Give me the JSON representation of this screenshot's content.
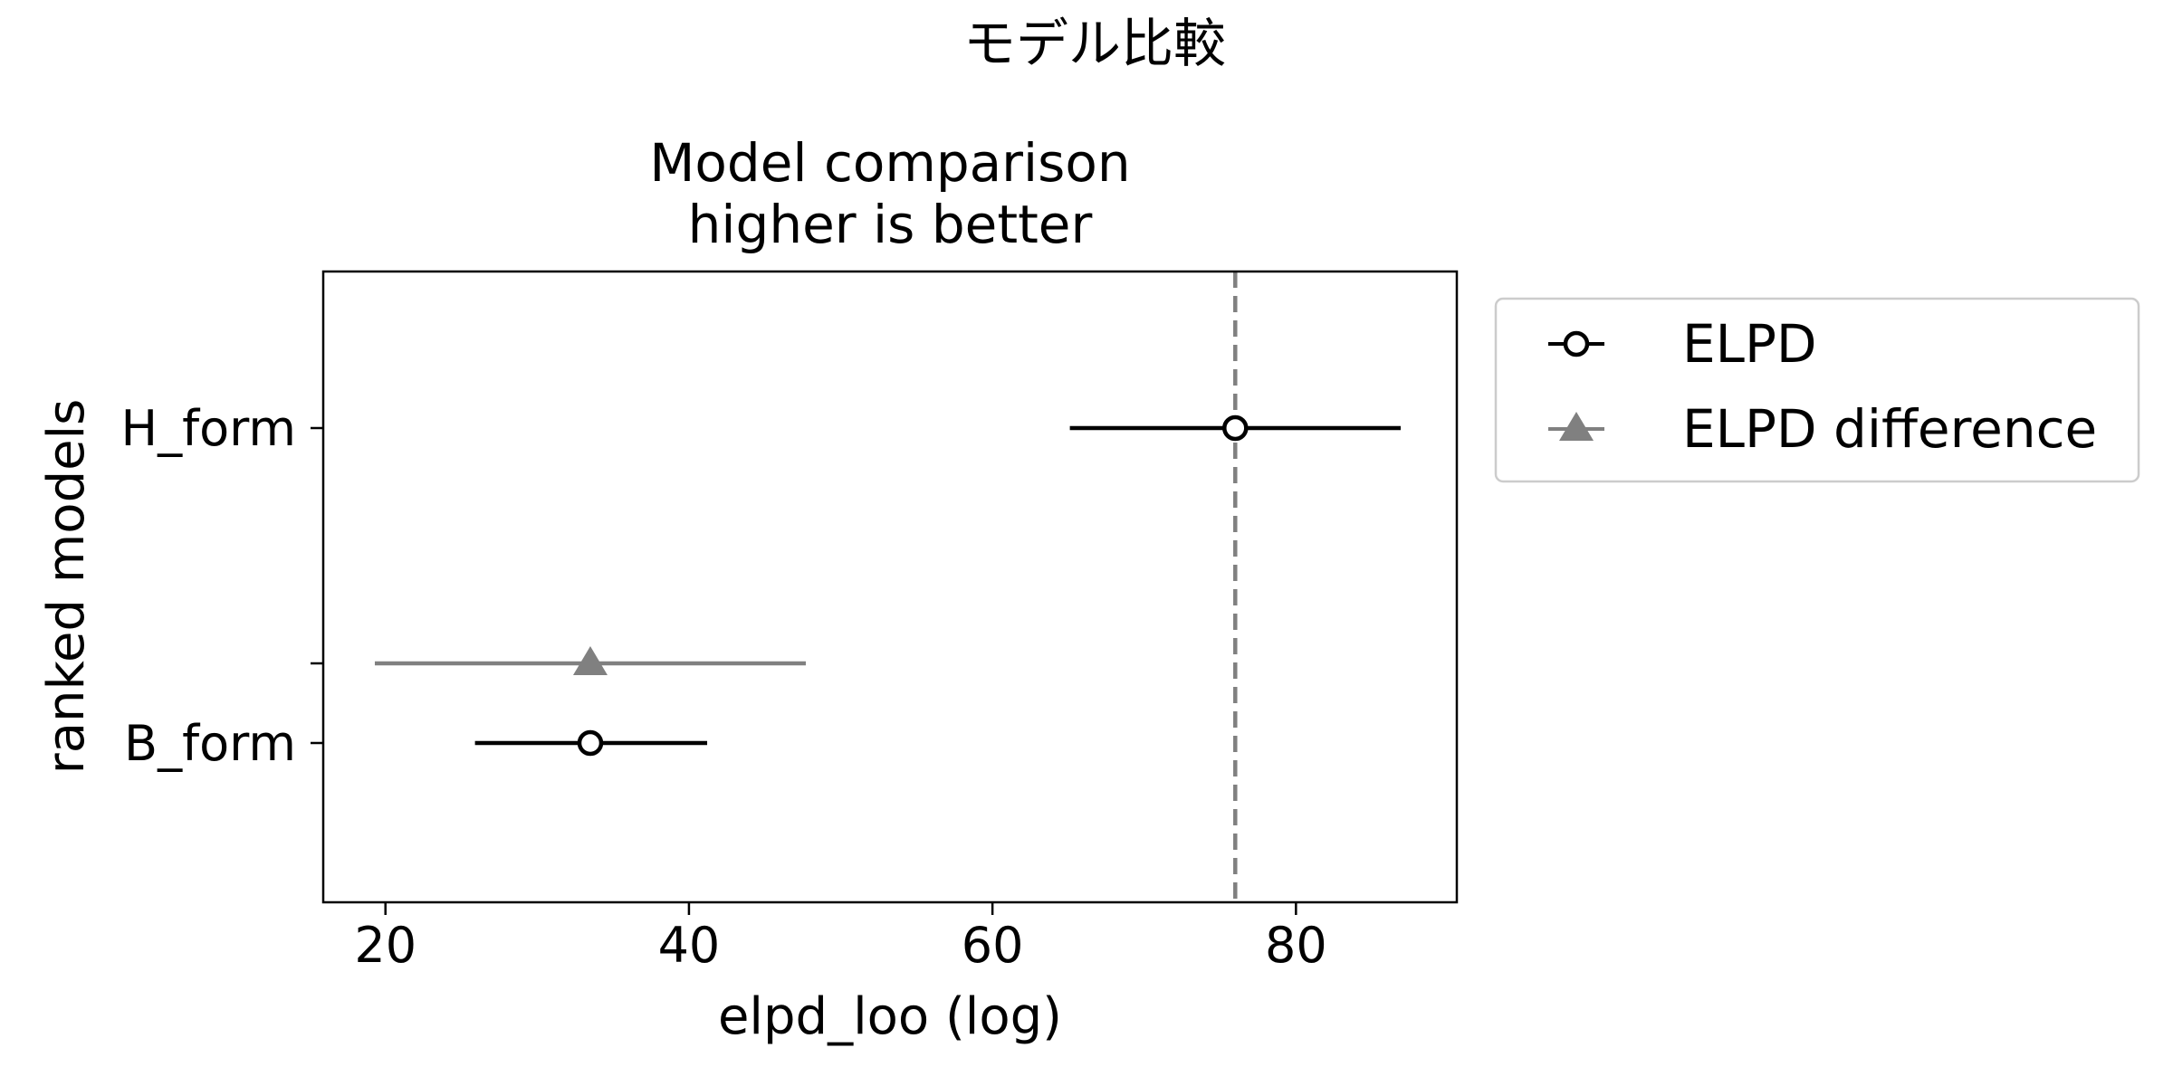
{
  "chart_data": {
    "type": "scatter",
    "suptitle": "モデル比較",
    "title_lines": [
      "Model comparison",
      "higher is better"
    ],
    "xlabel": "elpd_loo (log)",
    "ylabel": "ranked models",
    "xlim": [
      15.9,
      90.6
    ],
    "xticks": [
      20,
      40,
      60,
      80
    ],
    "models": [
      "H_form",
      "B_form"
    ],
    "reference_line": {
      "x": 76.0,
      "color": "#808080",
      "style": "dashed"
    },
    "series": [
      {
        "name": "ELPD",
        "marker": "open-circle",
        "color": "#000000",
        "points": [
          {
            "model": "H_form",
            "value": 76.0,
            "err_low": 65.1,
            "err_high": 86.9
          },
          {
            "model": "B_form",
            "value": 33.5,
            "err_low": 25.9,
            "err_high": 41.2
          }
        ]
      },
      {
        "name": "ELPD difference",
        "marker": "triangle",
        "color": "#808080",
        "points": [
          {
            "model": "B_form",
            "value": 33.5,
            "err_low": 19.3,
            "err_high": 47.7
          }
        ]
      }
    ],
    "legend_position": "outside-right"
  }
}
